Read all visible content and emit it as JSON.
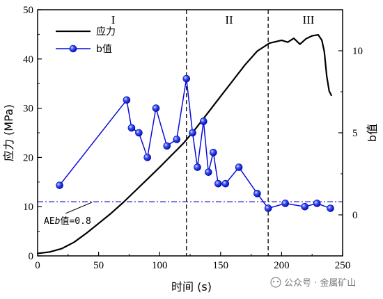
{
  "chart_data": {
    "type": "line",
    "xlabel": "时间 (s)",
    "ylabel_left": "应力 (MPa)",
    "ylabel_right": "b值",
    "xlim": [
      0,
      250
    ],
    "ylim_left": [
      0,
      50
    ],
    "ylim_right": [
      -2.5,
      12.5
    ],
    "x_ticks": [
      0,
      50,
      100,
      150,
      200,
      250
    ],
    "y_ticks_left": [
      0,
      10,
      20,
      30,
      40,
      50
    ],
    "y_ticks_right": [
      0,
      5,
      10
    ],
    "x_tick_labels": [
      "0",
      "50",
      "100",
      "150",
      "200",
      "250"
    ],
    "y_tick_labels_left": [
      "0",
      "10",
      "20",
      "30",
      "40",
      "50"
    ],
    "y_tick_labels_right": [
      "0",
      "5",
      "10"
    ],
    "legend": {
      "position": "top-left",
      "entries": [
        "应力",
        "b值"
      ]
    },
    "regions": {
      "labels": [
        "I",
        "II",
        "III"
      ],
      "label_x": [
        62,
        157,
        222
      ],
      "boundaries": [
        122,
        189
      ]
    },
    "reference_line": {
      "y_b": 0.8,
      "label_prefix": "AE",
      "label_italic": "b",
      "label_suffix": "值=0.8"
    },
    "series": [
      {
        "name": "应力",
        "axis": "left",
        "color": "#000000",
        "x": [
          0,
          10,
          20,
          30,
          40,
          50,
          60,
          70,
          80,
          90,
          100,
          110,
          120,
          130,
          140,
          150,
          160,
          170,
          180,
          190,
          200,
          205,
          210,
          215,
          220,
          225,
          230,
          233,
          235,
          237,
          239,
          241
        ],
        "y": [
          0.5,
          0.8,
          1.5,
          2.8,
          4.6,
          6.6,
          8.6,
          10.8,
          13.2,
          15.6,
          18.0,
          20.5,
          23.0,
          26.0,
          29.2,
          32.4,
          35.6,
          38.8,
          41.6,
          43.2,
          43.8,
          43.4,
          44.2,
          43.0,
          44.1,
          44.7,
          44.9,
          43.8,
          41.5,
          36.5,
          33.5,
          32.5
        ]
      },
      {
        "name": "b值",
        "axis": "right",
        "color": "#0a0adc",
        "x": [
          18,
          73,
          77,
          83,
          90,
          97,
          106,
          114,
          122,
          127,
          131,
          136,
          140,
          144,
          148,
          154,
          165,
          180,
          189,
          203,
          219,
          229,
          240
        ],
        "y": [
          1.8,
          7.0,
          5.3,
          5.0,
          3.5,
          6.5,
          4.2,
          4.6,
          8.3,
          5.0,
          2.9,
          5.7,
          2.6,
          3.8,
          1.9,
          1.9,
          2.9,
          1.3,
          0.4,
          0.7,
          0.5,
          0.7,
          0.4
        ]
      }
    ]
  },
  "watermark": {
    "text": "公众号 · 金属矿山"
  }
}
